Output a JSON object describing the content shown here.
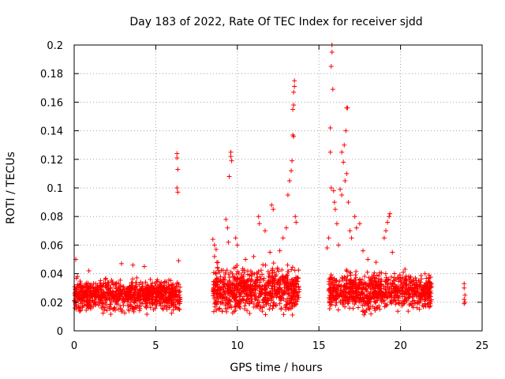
{
  "chart_data": {
    "type": "scatter",
    "title": "Day 183 of 2022, Rate Of TEC Index for receiver sjdd",
    "xlabel": "GPS time / hours",
    "ylabel": "ROTI / TECUs",
    "xlim": [
      0,
      25
    ],
    "ylim": [
      0,
      0.2
    ],
    "x_ticks": [
      0,
      5,
      10,
      15,
      20,
      25
    ],
    "x_tick_labels": [
      "0",
      "5",
      "10",
      "15",
      "20",
      "25"
    ],
    "y_ticks": [
      0,
      0.02,
      0.04,
      0.06,
      0.08,
      0.1,
      0.12,
      0.14,
      0.16,
      0.18,
      0.2
    ],
    "y_tick_labels": [
      "0",
      "0.02",
      "0.04",
      "0.06",
      "0.08",
      "0.1",
      "0.12",
      "0.14",
      "0.16",
      "0.18",
      "0.2"
    ],
    "grid": true,
    "marker": "+",
    "marker_color": "#ff0000",
    "series": [
      {
        "name": "ROTI",
        "dense_segments": [
          {
            "x_start": 0.0,
            "x_end": 6.5,
            "y_min": 0.01,
            "y_max": 0.04
          },
          {
            "x_start": 8.5,
            "x_end": 13.8,
            "y_min": 0.008,
            "y_max": 0.05
          },
          {
            "x_start": 15.6,
            "x_end": 21.9,
            "y_min": 0.01,
            "y_max": 0.045
          }
        ],
        "points": [
          [
            0.1,
            0.05
          ],
          [
            0.2,
            0.038
          ],
          [
            0.9,
            0.042
          ],
          [
            2.9,
            0.047
          ],
          [
            3.6,
            0.046
          ],
          [
            4.3,
            0.045
          ],
          [
            6.3,
            0.124
          ],
          [
            6.3,
            0.121
          ],
          [
            6.35,
            0.113
          ],
          [
            6.3,
            0.1
          ],
          [
            6.35,
            0.097
          ],
          [
            6.4,
            0.049
          ],
          [
            8.5,
            0.064
          ],
          [
            8.6,
            0.06
          ],
          [
            8.7,
            0.057
          ],
          [
            8.6,
            0.052
          ],
          [
            9.3,
            0.078
          ],
          [
            9.4,
            0.072
          ],
          [
            9.45,
            0.062
          ],
          [
            9.5,
            0.108
          ],
          [
            9.6,
            0.125
          ],
          [
            9.6,
            0.122
          ],
          [
            9.65,
            0.119
          ],
          [
            9.9,
            0.065
          ],
          [
            10.0,
            0.06
          ],
          [
            10.5,
            0.05
          ],
          [
            11.0,
            0.052
          ],
          [
            11.3,
            0.08
          ],
          [
            11.35,
            0.075
          ],
          [
            11.7,
            0.07
          ],
          [
            12.0,
            0.055
          ],
          [
            12.1,
            0.088
          ],
          [
            12.2,
            0.085
          ],
          [
            12.6,
            0.056
          ],
          [
            12.8,
            0.065
          ],
          [
            13.0,
            0.072
          ],
          [
            13.1,
            0.095
          ],
          [
            13.2,
            0.105
          ],
          [
            13.3,
            0.112
          ],
          [
            13.35,
            0.119
          ],
          [
            13.4,
            0.137
          ],
          [
            13.45,
            0.136
          ],
          [
            13.4,
            0.155
          ],
          [
            13.45,
            0.158
          ],
          [
            13.45,
            0.167
          ],
          [
            13.5,
            0.171
          ],
          [
            13.5,
            0.175
          ],
          [
            13.55,
            0.08
          ],
          [
            13.6,
            0.076
          ],
          [
            15.5,
            0.058
          ],
          [
            15.6,
            0.065
          ],
          [
            15.7,
            0.142
          ],
          [
            15.7,
            0.125
          ],
          [
            15.75,
            0.1
          ],
          [
            15.8,
            0.2
          ],
          [
            15.8,
            0.195
          ],
          [
            15.75,
            0.185
          ],
          [
            15.85,
            0.169
          ],
          [
            15.9,
            0.098
          ],
          [
            15.95,
            0.09
          ],
          [
            16.0,
            0.085
          ],
          [
            16.1,
            0.075
          ],
          [
            16.2,
            0.06
          ],
          [
            16.3,
            0.099
          ],
          [
            16.4,
            0.095
          ],
          [
            16.4,
            0.125
          ],
          [
            16.5,
            0.118
          ],
          [
            16.55,
            0.13
          ],
          [
            16.6,
            0.105
          ],
          [
            16.65,
            0.14
          ],
          [
            16.7,
            0.156
          ],
          [
            16.75,
            0.156
          ],
          [
            16.7,
            0.11
          ],
          [
            16.8,
            0.09
          ],
          [
            16.9,
            0.07
          ],
          [
            17.0,
            0.065
          ],
          [
            17.2,
            0.08
          ],
          [
            17.3,
            0.072
          ],
          [
            17.5,
            0.075
          ],
          [
            17.7,
            0.056
          ],
          [
            18.0,
            0.05
          ],
          [
            18.5,
            0.048
          ],
          [
            19.0,
            0.065
          ],
          [
            19.1,
            0.07
          ],
          [
            19.2,
            0.076
          ],
          [
            19.3,
            0.08
          ],
          [
            19.35,
            0.082
          ],
          [
            19.5,
            0.055
          ],
          [
            20.5,
            0.038
          ],
          [
            21.5,
            0.04
          ],
          [
            23.9,
            0.033
          ],
          [
            23.9,
            0.03
          ],
          [
            23.95,
            0.025
          ],
          [
            23.9,
            0.022
          ],
          [
            23.95,
            0.02
          ],
          [
            23.9,
            0.019
          ]
        ]
      }
    ]
  }
}
